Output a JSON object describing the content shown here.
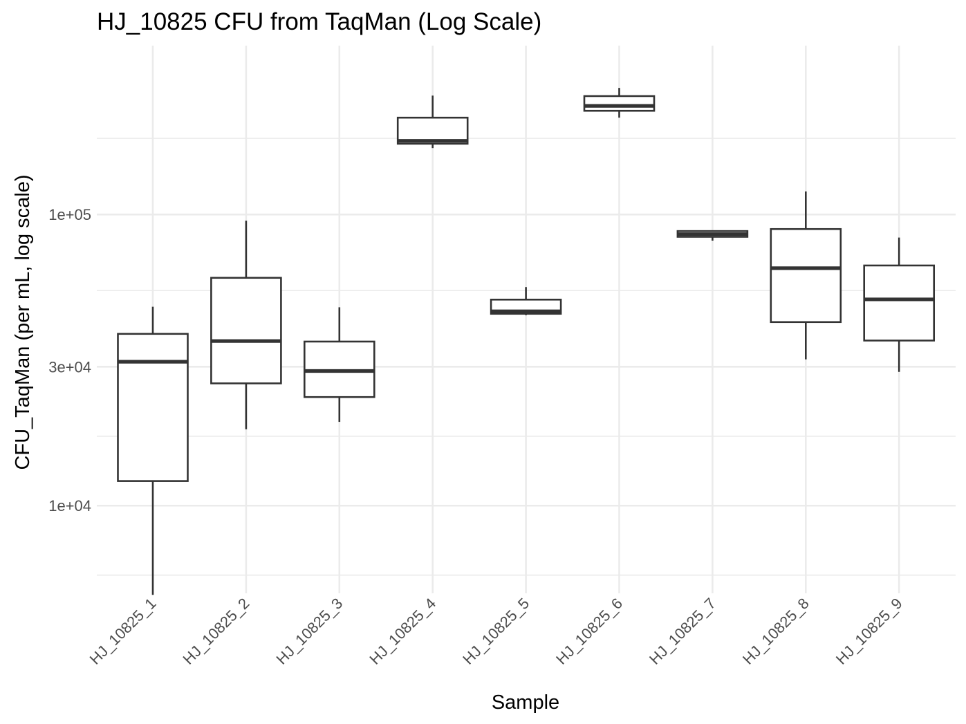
{
  "chart_data": {
    "type": "boxplot",
    "title": "HJ_10825 CFU from TaqMan (Log Scale)",
    "xlabel": "Sample",
    "ylabel": "CFU_TaqMan (per mL, log scale)",
    "y_scale": "log10",
    "ylim": [
      5000,
      380000
    ],
    "y_ticks": [
      {
        "value": 10000,
        "label": "1e+04"
      },
      {
        "value": 30000,
        "label": "3e+04"
      },
      {
        "value": 100000,
        "label": "1e+05"
      }
    ],
    "grid": true,
    "legend": "none",
    "categories": [
      "HJ_10825_1",
      "HJ_10825_2",
      "HJ_10825_3",
      "HJ_10825_4",
      "HJ_10825_5",
      "HJ_10825_6",
      "HJ_10825_7",
      "HJ_10825_8",
      "HJ_10825_9"
    ],
    "boxes": [
      {
        "min": 4940,
        "q1": 12150,
        "median": 31200,
        "q3": 38900,
        "max": 48200
      },
      {
        "min": 18300,
        "q1": 26300,
        "median": 36750,
        "q3": 60600,
        "max": 95200
      },
      {
        "min": 19400,
        "q1": 23600,
        "median": 29000,
        "q3": 36600,
        "max": 48000
      },
      {
        "min": 169000,
        "q1": 175000,
        "median": 179000,
        "q3": 215000,
        "max": 256000
      },
      {
        "min": 45100,
        "q1": 45600,
        "median": 46500,
        "q3": 51000,
        "max": 56300
      },
      {
        "min": 215000,
        "q1": 227000,
        "median": 236000,
        "q3": 255000,
        "max": 272000
      },
      {
        "min": 81300,
        "q1": 83800,
        "median": 85600,
        "q3": 87700,
        "max": 87700
      },
      {
        "min": 31800,
        "q1": 42700,
        "median": 65400,
        "q3": 89100,
        "max": 120000
      },
      {
        "min": 28800,
        "q1": 36900,
        "median": 51100,
        "q3": 66800,
        "max": 83300
      }
    ]
  }
}
